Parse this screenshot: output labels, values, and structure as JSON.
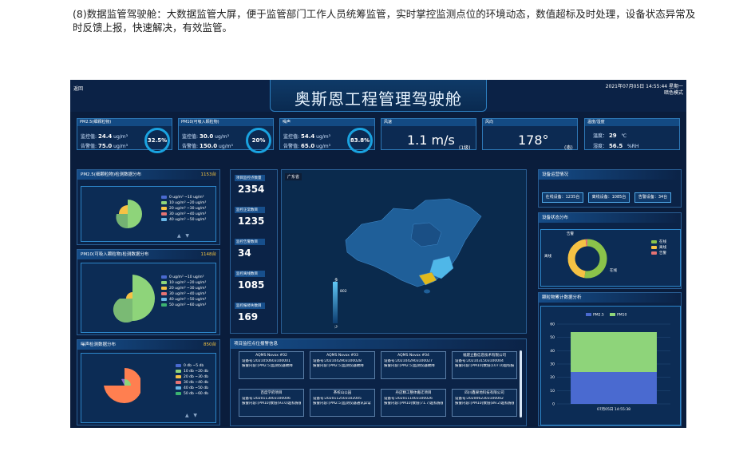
{
  "intro": "(8)数据监管驾驶舱：大数据监管大屏，便于监管部门工作人员统筹监管，实时掌控监测点位的环境动态，数值超标及时处理，设备状态异常及时反馈上报，快速解决，有效监管。",
  "dashboard": {
    "back": "返回",
    "title": "奥斯恩工程管理驾驶舱",
    "datetime": "2021年07月05日 14:55:44 星期一",
    "mode": "暗色模式",
    "pm25_card": {
      "title": "PM2.5(细颗粒物)",
      "monitor_label": "监控值:",
      "monitor_value": "24.4",
      "alarm_label": "告警值:",
      "alarm_value": "75.0",
      "unit": "ug/m³",
      "percent": "32.5%"
    },
    "pm10_card": {
      "title": "PM10(可吸入颗粒物)",
      "monitor_label": "监控值:",
      "monitor_value": "30.0",
      "alarm_label": "告警值:",
      "alarm_value": "150.0",
      "unit": "ug/m³",
      "percent": "20%"
    },
    "noise_card": {
      "title": "噪声",
      "monitor_label": "监控值:",
      "monitor_value": "54.4",
      "alarm_label": "告警值:",
      "alarm_value": "65.0",
      "unit": "ug/m³",
      "percent": "83.8%"
    },
    "wind_speed_card": {
      "title": "风速",
      "value": "1.1 m/s",
      "level": "(1级)"
    },
    "wind_dir_card": {
      "title": "风向",
      "value": "178°",
      "direction": "(南)"
    },
    "temp_card": {
      "title": "温度/湿度",
      "temp_label": "温度：",
      "temp_value": "29",
      "temp_unit": "℃",
      "hum_label": "湿度：",
      "hum_value": "56.5",
      "hum_unit": "%RH"
    },
    "pm25_panel": {
      "title": "PM2.5(细颗粒物)检测数据分布",
      "count": "1153台",
      "legend": [
        "0 ug/m³ ~10 ug/m³",
        "10 ug/m³ ~20 ug/m³",
        "20 ug/m³ ~30 ug/m³",
        "30 ug/m³ ~40 ug/m³",
        "40 ug/m³ ~50 ug/m³"
      ]
    },
    "pm10_panel": {
      "title": "PM10(可吸入颗粒物)检测数据分布",
      "count": "1148台",
      "legend": [
        "0 ug/m³ ~10 ug/m³",
        "10 ug/m³ ~20 ug/m³",
        "20 ug/m³ ~30 ug/m³",
        "30 ug/m³ ~40 ug/m³",
        "40 ug/m³ ~50 ug/m³",
        "50 ug/m³ ~60 ug/m³"
      ]
    },
    "noise_panel": {
      "title": "噪声检测数据分布",
      "count": "850台",
      "legend": [
        "0 db ~5 db",
        "10 db ~20 db",
        "20 db ~30 db",
        "30 db ~40 db",
        "40 db ~50 db",
        "50 db ~60 db"
      ]
    },
    "stats": [
      {
        "label": "项目监控点数量",
        "value": "2354"
      },
      {
        "label": "监控正常数目",
        "value": "1235"
      },
      {
        "label": "监控告警数目",
        "value": "34"
      },
      {
        "label": "监控离线数目",
        "value": "1085"
      },
      {
        "label": "监控报修失数目",
        "value": "169"
      }
    ],
    "map": {
      "region": "广东省",
      "scale_max": "多",
      "scale_value": "802",
      "scale_min": "少"
    },
    "alarms_title": "项目监控点位报警信息",
    "alarms": [
      {
        "title": "AQMS Novox #02",
        "device": "设备号:2021050603100001",
        "content": "报警内容:[PM2.5]监测仪器故障"
      },
      {
        "title": "AQMS Novox #03",
        "device": "设备号:2021042903100028",
        "content": "报警内容:[PM2.5]监测仪器故障"
      },
      {
        "title": "AQMS Novox #04",
        "device": "设备号:2021042903100027",
        "content": "报警内容:[PM2.5]监测仪器故障"
      },
      {
        "title": "福建立勤信息技术有限公司",
        "device": "设备号:2021031503100004",
        "content": "报警内容:[PM10]数值(107.0)超标报警"
      },
      {
        "title": "百度学府项目",
        "device": "设备号:2020113003100006",
        "content": "报警内容:[PM10]数值(93.0)超标报警"
      },
      {
        "title": "茶校山公园",
        "device": "设备号:2020112503102005",
        "content": "报警内容:[PM2.5]监测仪器通讯异常"
      },
      {
        "title": "丹店精工整体搬迁项目",
        "device": "设备号:2020111003100026",
        "content": "报警内容:[PM10]数值(71.7)超标报警"
      },
      {
        "title": "四川鑫果地科技有限公司",
        "device": "设备号:2020062303100002",
        "content": "报警内容:[PM10]数值(89.2)超标报警"
      }
    ],
    "device_status": {
      "title": "设备运营情况",
      "online": "在线设备：1235台",
      "offline": "离线设备：1085台",
      "alarm": "告警设备：34台"
    },
    "device_dist": {
      "title": "设备状态分布",
      "labels": {
        "alarm": "告警",
        "offline": "离线",
        "online": "在线"
      },
      "legend": [
        "在线",
        "离线",
        "告警"
      ]
    },
    "bar_panel": {
      "title": "颗粒物累计数据分析"
    },
    "colors": {
      "accent": "#1aa3e0",
      "online": "#8bc34a",
      "offline": "#f6c244",
      "alarm": "#e57373",
      "pm25_series": "#4a6ad0",
      "pm10_series": "#8ed47a"
    }
  },
  "chart_data": [
    {
      "type": "bar",
      "categories": [
        "07月05日 14:55:38"
      ],
      "series": [
        {
          "name": "PM2.5",
          "values": [
            24
          ]
        },
        {
          "name": "PM10",
          "values": [
            30
          ]
        }
      ],
      "stacked": true,
      "ylim": [
        0,
        60
      ],
      "yticks": [
        0,
        10,
        20,
        30,
        40,
        50,
        60
      ],
      "legend": "top"
    },
    {
      "type": "pie",
      "labels": [
        "在线",
        "离线",
        "告警"
      ],
      "values": [
        1235,
        1085,
        34
      ],
      "donut": true
    }
  ]
}
